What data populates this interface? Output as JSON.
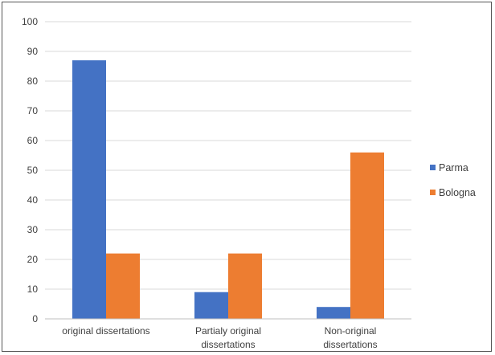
{
  "chart_data": {
    "type": "bar",
    "title": "",
    "xlabel": "",
    "ylabel": "",
    "ylim": [
      0,
      100
    ],
    "yticks": [
      0,
      10,
      20,
      30,
      40,
      50,
      60,
      70,
      80,
      90,
      100
    ],
    "grid": true,
    "legend_position": "right",
    "categories": [
      [
        "original dissertations"
      ],
      [
        "Partialy original",
        "dissertations"
      ],
      [
        "Non-original",
        "dissertations"
      ]
    ],
    "series": [
      {
        "name": "Parma",
        "color": "#4472C4",
        "values": [
          87,
          9,
          4
        ]
      },
      {
        "name": "Bologna",
        "color": "#ED7D31",
        "values": [
          22,
          22,
          56
        ]
      }
    ]
  }
}
